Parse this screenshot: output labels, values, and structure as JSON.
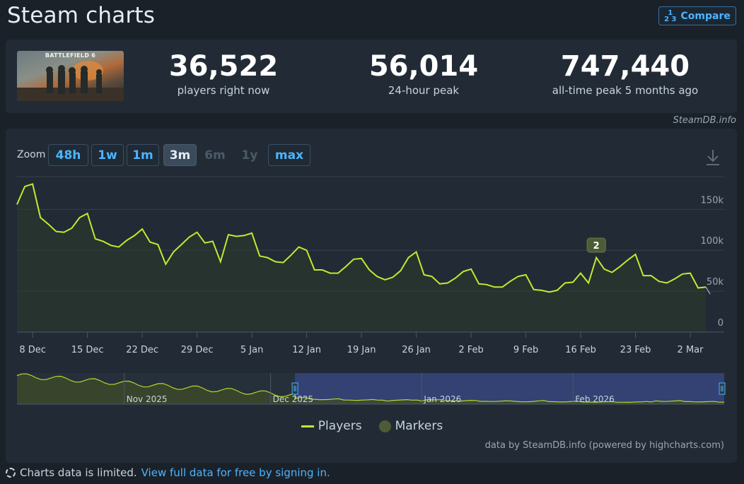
{
  "header": {
    "title": "Steam charts",
    "compare_label": "Compare",
    "compare_icon": "1 2 3 fraction icon"
  },
  "game": {
    "thumbnail_title": "BATTLEFIELD 6"
  },
  "stats": [
    {
      "value": "36,522",
      "label": "players right now"
    },
    {
      "value": "56,014",
      "label": "24-hour peak"
    },
    {
      "value": "747,440",
      "label": "all-time peak 5 months ago"
    }
  ],
  "credit": "SteamDB.info",
  "zoom": {
    "label": "Zoom",
    "buttons": [
      {
        "label": "48h",
        "state": "enabled"
      },
      {
        "label": "1w",
        "state": "enabled"
      },
      {
        "label": "1m",
        "state": "enabled"
      },
      {
        "label": "3m",
        "state": "active"
      },
      {
        "label": "6m",
        "state": "disabled"
      },
      {
        "label": "1y",
        "state": "disabled"
      },
      {
        "label": "max",
        "state": "enabled"
      }
    ]
  },
  "chart_data": {
    "type": "area",
    "series": [
      {
        "name": "Players",
        "color": "#c2ea2f",
        "values": [
          156000,
          178000,
          181000,
          140000,
          132000,
          123000,
          122000,
          127000,
          140000,
          145000,
          114000,
          111000,
          106000,
          104000,
          112000,
          118000,
          126000,
          110000,
          107000,
          83000,
          98000,
          107000,
          116000,
          122000,
          109000,
          111000,
          86000,
          119000,
          117000,
          118000,
          121000,
          93000,
          91000,
          86000,
          85000,
          94000,
          104000,
          100000,
          76000,
          76000,
          72000,
          72000,
          80000,
          89000,
          90000,
          76000,
          68000,
          64000,
          67000,
          75000,
          91000,
          98000,
          70000,
          68000,
          59000,
          60000,
          66000,
          74000,
          77000,
          59000,
          58000,
          55000,
          55000,
          62000,
          68000,
          70000,
          52000,
          51000,
          49000,
          51000,
          60000,
          61000,
          72000,
          60000,
          91000,
          77000,
          73000,
          80000,
          88000,
          95000,
          69000,
          69000,
          62000,
          60000,
          65000,
          71000,
          72000,
          54000,
          55000
        ]
      }
    ],
    "x_start": "2025-12-06",
    "x_tick_labels": [
      "8 Dec",
      "15 Dec",
      "22 Dec",
      "29 Dec",
      "5 Jan",
      "12 Jan",
      "19 Jan",
      "26 Jan",
      "2 Feb",
      "9 Feb",
      "16 Feb",
      "23 Feb",
      "2 Mar"
    ],
    "y_tick_labels": [
      "0",
      "50k",
      "100k",
      "150k"
    ],
    "ylim": [
      0,
      190000
    ],
    "markers": [
      {
        "label": "2",
        "x": "2026-02-18"
      }
    ],
    "navigator": {
      "labels": [
        "Nov 2025",
        "Dec 2025",
        "Jan 2026",
        "Feb 2026"
      ],
      "selection": [
        "2025-12-06",
        "2026-03-04"
      ]
    },
    "grid": true,
    "legend": [
      "Players",
      "Markers"
    ]
  },
  "legend": {
    "players": "Players",
    "markers": "Markers"
  },
  "powered_by": "data by SteamDB.info (powered by highcharts.com)",
  "footer": {
    "text": "Charts data is limited.",
    "link": "View full data for free by signing in."
  }
}
